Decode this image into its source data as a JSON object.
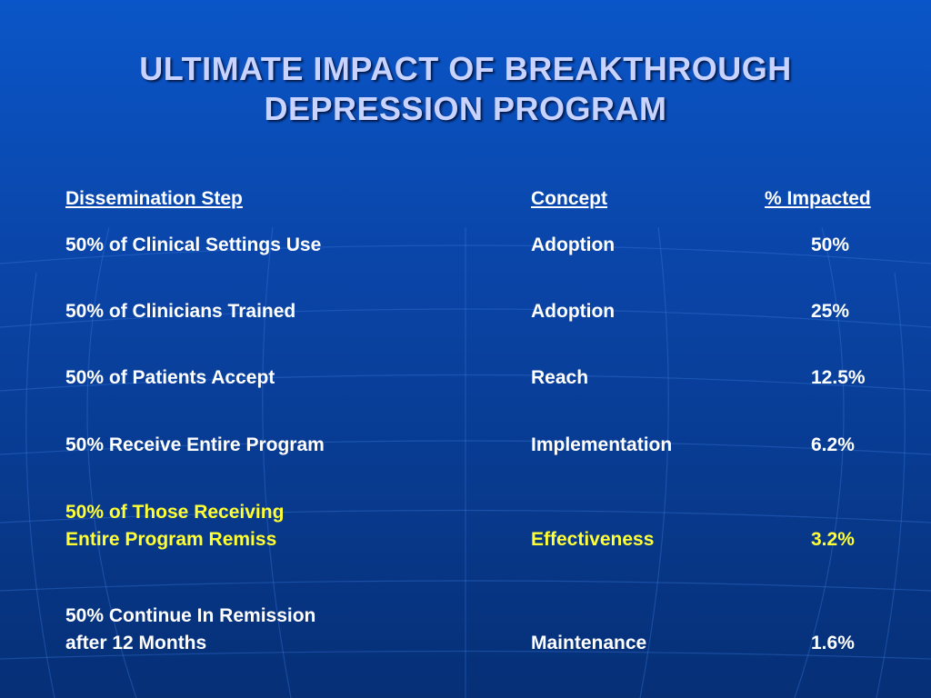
{
  "slide": {
    "title_line1": "ULTIMATE IMPACT OF BREAKTHROUGH",
    "title_line2": "DEPRESSION PROGRAM"
  },
  "table": {
    "headers": {
      "step": "Dissemination Step",
      "concept": "Concept",
      "impact": "% Impacted"
    },
    "rows": [
      {
        "step_line1": "50% of Clinical Settings  Use",
        "step_line2": "",
        "concept": "Adoption",
        "impact": "50%"
      },
      {
        "step_line1": "50% of Clinicians Trained",
        "step_line2": "",
        "concept": "Adoption",
        "impact": "25%"
      },
      {
        "step_line1": "50% of Patients Accept",
        "step_line2": "",
        "concept": "Reach",
        "impact": "12.5%"
      },
      {
        "step_line1": "50% Receive Entire Program",
        "step_line2": "",
        "concept": "Implementation",
        "impact": "6.2%"
      },
      {
        "step_line1": "50% of Those Receiving",
        "step_line2": "Entire Program Remiss",
        "concept": "Effectiveness",
        "impact": "3.2%"
      },
      {
        "step_line1": "50% Continue In Remission",
        "step_line2": "after 12 Months",
        "concept": "Maintenance",
        "impact": "1.6%"
      }
    ]
  },
  "colors": {
    "background": "#0a46aa",
    "title": "#c9d3ff",
    "text": "#ffffff",
    "highlight": "#ffff33"
  }
}
